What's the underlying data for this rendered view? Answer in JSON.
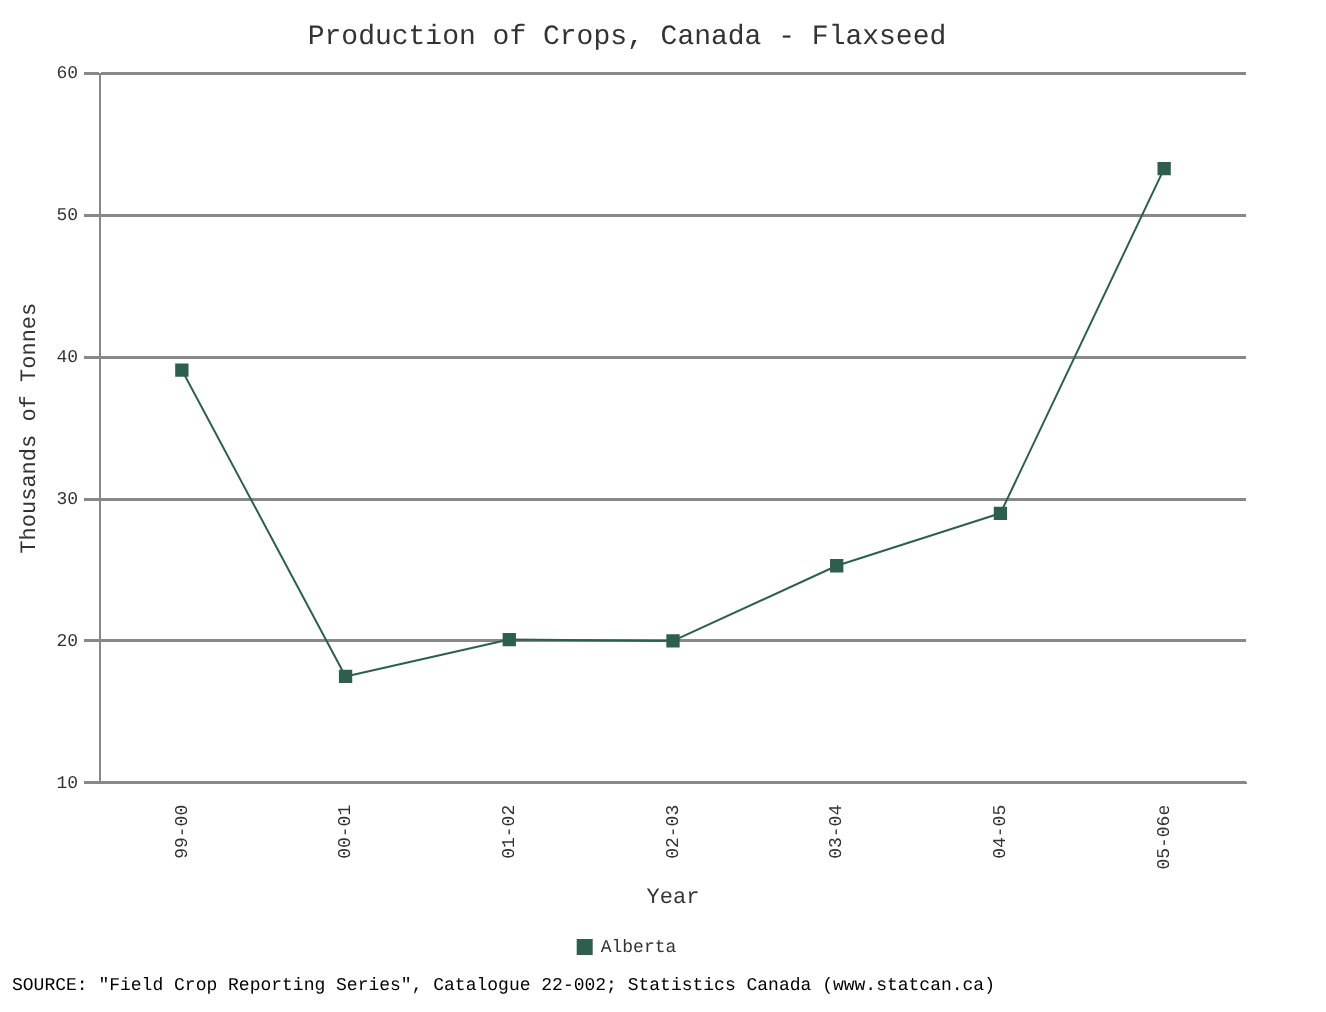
{
  "chart_data": {
    "type": "line",
    "title": "Production of Crops, Canada - Flaxseed",
    "xlabel": "Year",
    "ylabel": "Thousands of Tonnes",
    "categories": [
      "99-00",
      "00-01",
      "01-02",
      "02-03",
      "03-04",
      "04-05",
      "05-06e"
    ],
    "series": [
      {
        "name": "Alberta",
        "color": "#2e5e4e",
        "values": [
          39.1,
          17.5,
          20.1,
          20.0,
          25.3,
          29.0,
          53.3
        ]
      }
    ],
    "ylim": [
      10,
      60
    ],
    "yticks": [
      10,
      20,
      30,
      40,
      50,
      60
    ],
    "grid": "y",
    "legend": "bottom",
    "marker": "square",
    "line_style": "solid",
    "annotations": [
      "SOURCE: \"Field Crop Reporting Series\", Catalogue 22-002; Statistics Canada (www.statcan.ca)"
    ]
  }
}
